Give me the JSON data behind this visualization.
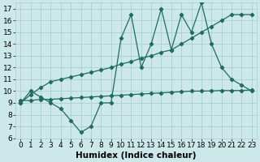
{
  "x": [
    0,
    1,
    2,
    3,
    4,
    5,
    6,
    7,
    8,
    9,
    10,
    11,
    12,
    13,
    14,
    15,
    16,
    17,
    18,
    19,
    20,
    21,
    22,
    23
  ],
  "y_zigzag": [
    9.0,
    10.0,
    9.5,
    9.0,
    8.5,
    7.5,
    6.5,
    7.0,
    9.0,
    9.0,
    14.5,
    16.5,
    12.0,
    14.0,
    17.0,
    13.5,
    16.5,
    15.0,
    17.5,
    14.0,
    12.0,
    11.0,
    10.5,
    10.0
  ],
  "y_upper": [
    9.0,
    9.7,
    10.3,
    10.8,
    11.0,
    11.2,
    11.4,
    11.6,
    11.8,
    12.0,
    12.3,
    12.5,
    12.8,
    13.0,
    13.3,
    13.5,
    14.0,
    14.5,
    15.0,
    15.5,
    16.0,
    16.5,
    16.5,
    16.5
  ],
  "y_lower": [
    9.2,
    9.2,
    9.3,
    9.3,
    9.35,
    9.4,
    9.45,
    9.5,
    9.55,
    9.6,
    9.65,
    9.7,
    9.75,
    9.8,
    9.85,
    9.9,
    9.95,
    10.0,
    10.0,
    10.02,
    10.05,
    10.05,
    10.05,
    10.1
  ],
  "color": "#206b61",
  "bg_color": "#cce8e8",
  "grid_color": "#aacece",
  "xlabel": "Humidex (Indice chaleur)",
  "ylim": [
    6,
    17.5
  ],
  "xlim": [
    -0.5,
    23.5
  ],
  "yticks": [
    6,
    7,
    8,
    9,
    10,
    11,
    12,
    13,
    14,
    15,
    16,
    17
  ],
  "xticks": [
    0,
    1,
    2,
    3,
    4,
    5,
    6,
    7,
    8,
    9,
    10,
    11,
    12,
    13,
    14,
    15,
    16,
    17,
    18,
    19,
    20,
    21,
    22,
    23
  ],
  "marker": "D",
  "markersize": 2.2,
  "linewidth": 0.9,
  "font_size": 6.5,
  "xlabel_fontsize": 7.5
}
